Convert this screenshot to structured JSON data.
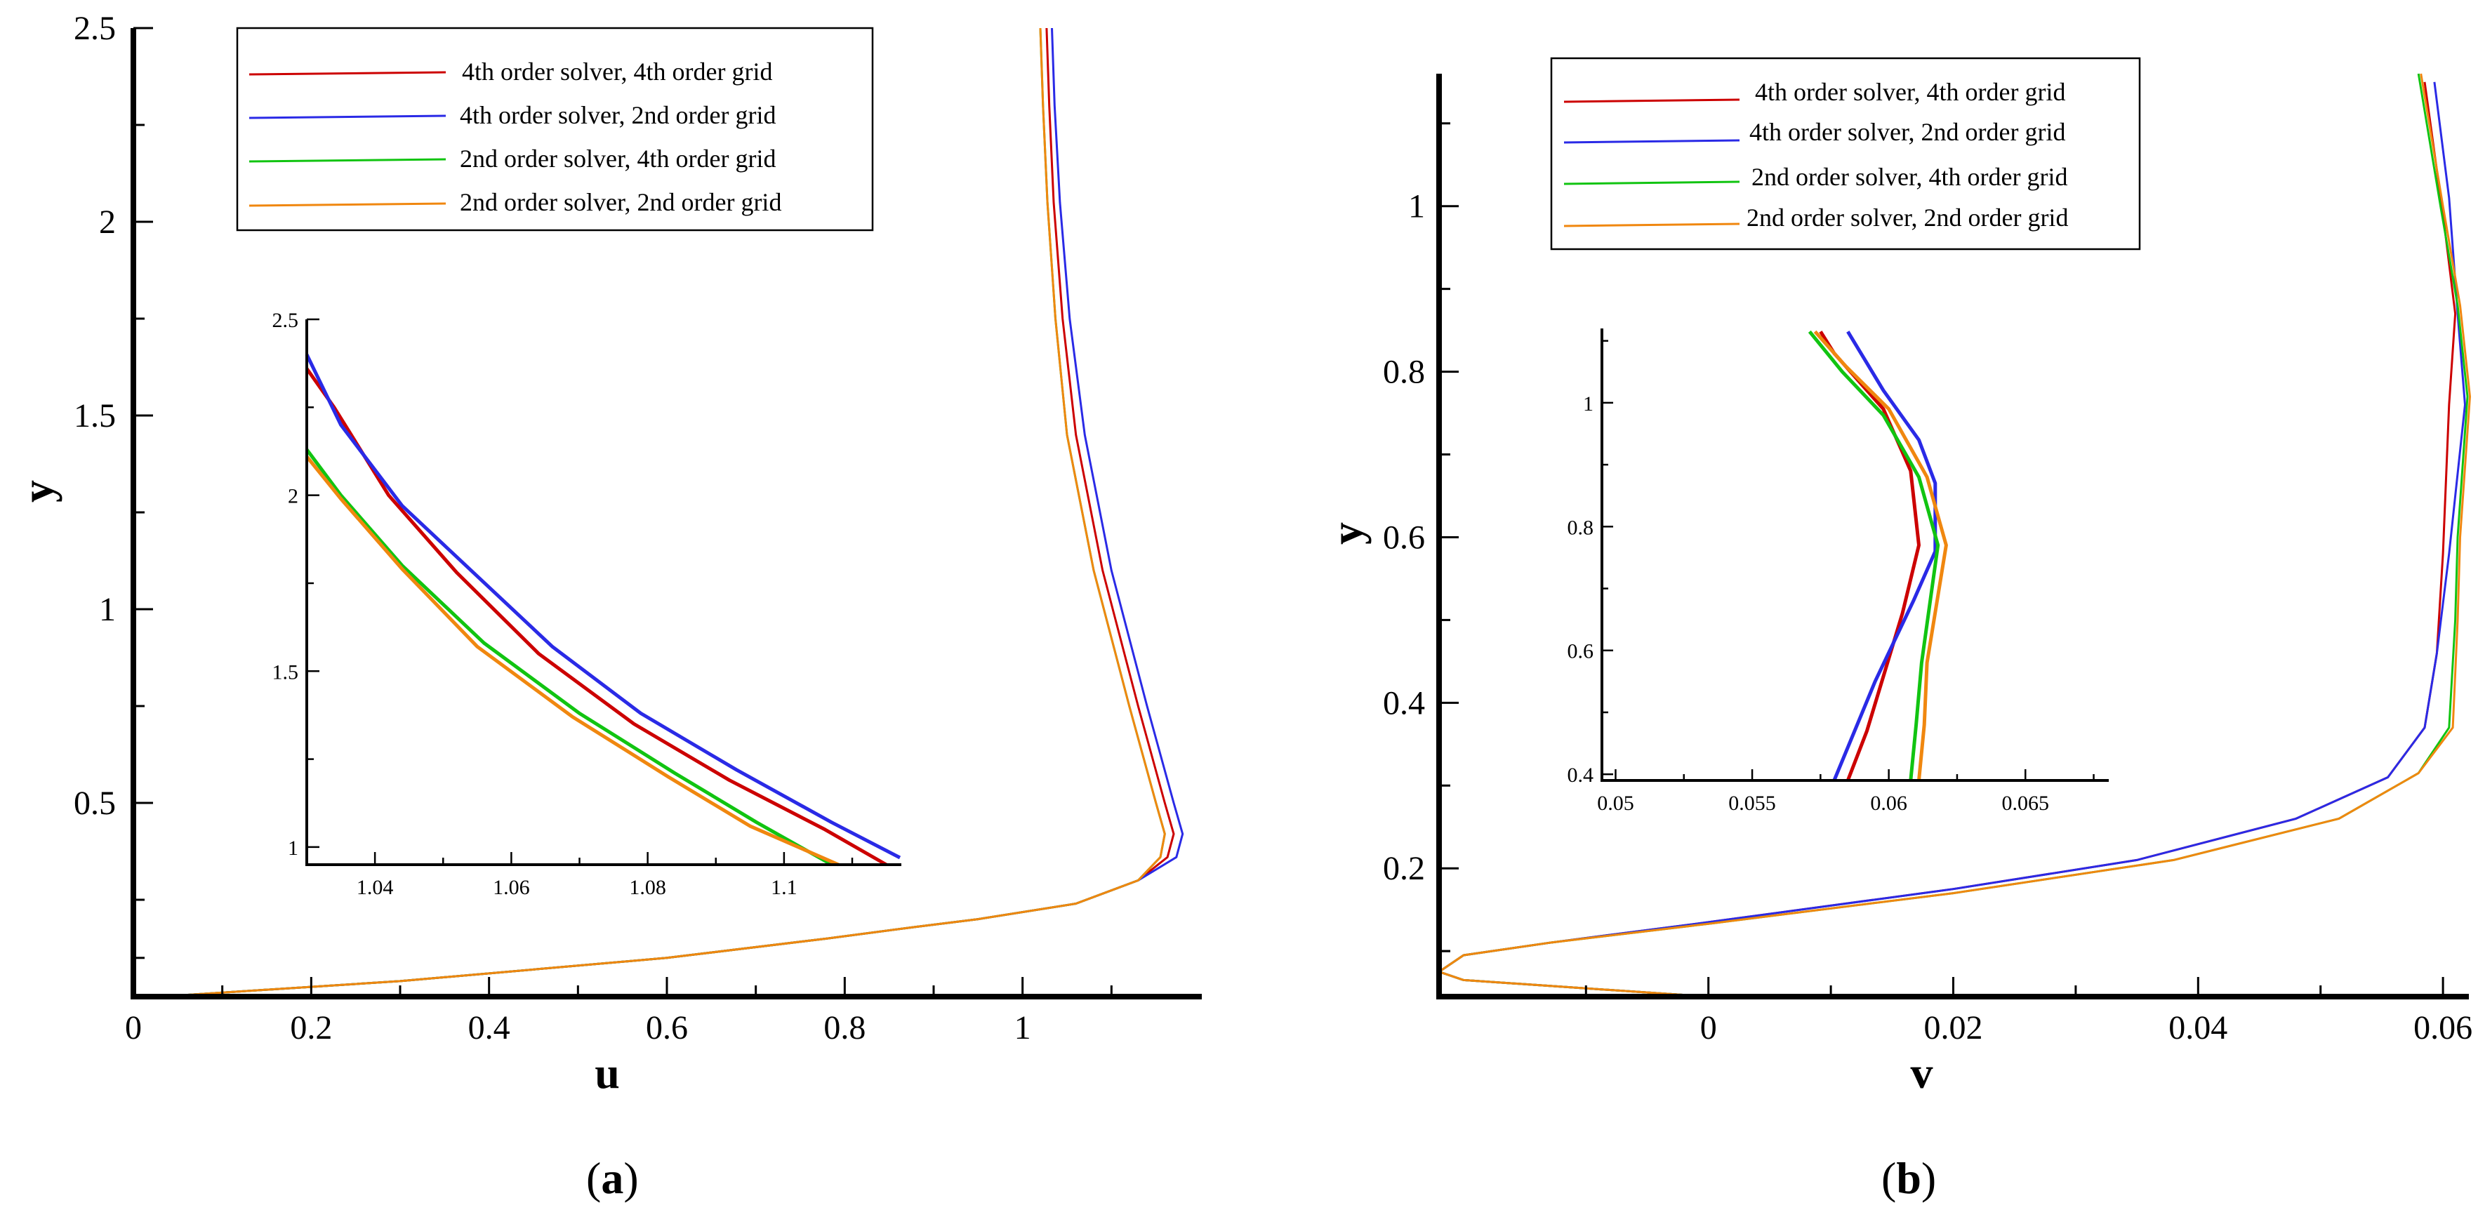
{
  "figure": {
    "captions": [
      {
        "open": "(",
        "letter": "a",
        "close": ")"
      },
      {
        "open": "(",
        "letter": "b",
        "close": ")"
      }
    ]
  },
  "series_styles": [
    {
      "name": "4th order solver, 4th order grid",
      "color": "#cc0000"
    },
    {
      "name": "4th order solver, 2nd order grid",
      "color": "#2a2ae6"
    },
    {
      "name": "2nd order solver, 4th order grid",
      "color": "#11c411"
    },
    {
      "name": "2nd order solver, 2nd order grid",
      "color": "#f0870f"
    }
  ],
  "chart_data": [
    {
      "id": "a",
      "type": "line",
      "title": "",
      "xlabel": "u",
      "ylabel": "y",
      "xlim": [
        0,
        1.2
      ],
      "ylim": [
        0,
        2.5
      ],
      "xticks": [
        0,
        0.2,
        0.4,
        0.6,
        0.8,
        1
      ],
      "xtick_labels": [
        "0",
        "0.2",
        "0.4",
        "0.6",
        "0.8",
        "1"
      ],
      "yticks": [
        0.5,
        1,
        1.5,
        2,
        2.5
      ],
      "ytick_labels": [
        "0.5",
        "1",
        "1.5",
        "2",
        "2.5"
      ],
      "legend_position": "top-center",
      "series": [
        {
          "name": "4th order solver, 4th order grid",
          "x": [
            0.03,
            0.3,
            0.6,
            0.78,
            0.88,
            0.95,
            1.06,
            1.13,
            1.163,
            1.17,
            1.16,
            1.13,
            1.09,
            1.06,
            1.045,
            1.035,
            1.03,
            1.027
          ],
          "y": [
            0.0,
            0.04,
            0.1,
            0.15,
            0.18,
            0.2,
            0.24,
            0.3,
            0.36,
            0.42,
            0.5,
            0.75,
            1.1,
            1.45,
            1.75,
            2.05,
            2.3,
            2.5
          ]
        },
        {
          "name": "4th order solver, 2nd order grid",
          "x": [
            0.03,
            0.3,
            0.6,
            0.78,
            0.88,
            0.95,
            1.06,
            1.13,
            1.173,
            1.18,
            1.17,
            1.14,
            1.1,
            1.07,
            1.053,
            1.042,
            1.036,
            1.033
          ],
          "y": [
            0.0,
            0.04,
            0.1,
            0.15,
            0.18,
            0.2,
            0.24,
            0.3,
            0.36,
            0.42,
            0.5,
            0.75,
            1.1,
            1.45,
            1.75,
            2.05,
            2.3,
            2.5
          ]
        },
        {
          "name": "2nd order solver, 4th order grid",
          "x": [
            0.03,
            0.3,
            0.6,
            0.78,
            0.88,
            0.95,
            1.06,
            1.13,
            1.155,
            1.16,
            1.15,
            1.12,
            1.08,
            1.05,
            1.037,
            1.028,
            1.023,
            1.02
          ],
          "y": [
            0.0,
            0.04,
            0.1,
            0.15,
            0.18,
            0.2,
            0.24,
            0.3,
            0.36,
            0.42,
            0.5,
            0.75,
            1.1,
            1.45,
            1.75,
            2.05,
            2.3,
            2.5
          ]
        },
        {
          "name": "2nd order solver, 2nd order grid",
          "x": [
            0.03,
            0.3,
            0.6,
            0.78,
            0.88,
            0.95,
            1.06,
            1.13,
            1.155,
            1.16,
            1.15,
            1.12,
            1.08,
            1.05,
            1.037,
            1.028,
            1.023,
            1.02
          ],
          "y": [
            0.0,
            0.04,
            0.1,
            0.15,
            0.18,
            0.2,
            0.24,
            0.3,
            0.36,
            0.42,
            0.5,
            0.75,
            1.1,
            1.45,
            1.75,
            2.05,
            2.3,
            2.5
          ]
        }
      ],
      "inset": {
        "xlim": [
          1.03,
          1.117
        ],
        "ylim": [
          0.95,
          2.5
        ],
        "xticks": [
          1.04,
          1.06,
          1.08,
          1.1
        ],
        "xtick_labels": [
          "1.04",
          "1.06",
          "1.08",
          "1.1"
        ],
        "yticks": [
          1,
          1.5,
          2,
          2.5
        ],
        "ytick_labels": [
          "1",
          "1.5",
          "2",
          "2.5"
        ],
        "series": [
          {
            "name": "4th order solver, 4th order grid",
            "x": [
              1.03,
              1.034,
              1.042,
              1.052,
              1.064,
              1.078,
              1.092,
              1.106,
              1.115
            ],
            "y": [
              2.36,
              2.25,
              2.0,
              1.78,
              1.55,
              1.35,
              1.19,
              1.05,
              0.95
            ]
          },
          {
            "name": "4th order solver, 2nd order grid",
            "x": [
              1.03,
              1.035,
              1.044,
              1.055,
              1.066,
              1.079,
              1.093,
              1.107,
              1.117
            ],
            "y": [
              2.4,
              2.2,
              1.97,
              1.77,
              1.57,
              1.38,
              1.22,
              1.07,
              0.97
            ]
          },
          {
            "name": "2nd order solver, 4th order grid",
            "x": [
              1.03,
              1.035,
              1.044,
              1.056,
              1.07,
              1.084,
              1.096,
              1.107
            ],
            "y": [
              2.13,
              2.0,
              1.8,
              1.58,
              1.38,
              1.21,
              1.07,
              0.95
            ]
          },
          {
            "name": "2nd order solver, 2nd order grid",
            "x": [
              1.03,
              1.035,
              1.044,
              1.055,
              1.069,
              1.083,
              1.095,
              1.108
            ],
            "y": [
              2.11,
              1.99,
              1.79,
              1.57,
              1.37,
              1.2,
              1.06,
              0.95
            ]
          }
        ]
      }
    },
    {
      "id": "b",
      "type": "line",
      "title": "",
      "xlabel": "v",
      "ylabel": "y",
      "xlim": [
        -0.022,
        0.062
      ],
      "ylim": [
        0.045,
        1.16
      ],
      "xticks": [
        0,
        0.02,
        0.04,
        0.06
      ],
      "xtick_labels": [
        "0",
        "0.02",
        "0.04",
        "0.06"
      ],
      "yticks": [
        0.2,
        0.4,
        0.6,
        0.8,
        1
      ],
      "ytick_labels": [
        "0.2",
        "0.4",
        "0.6",
        "0.8",
        "1"
      ],
      "legend_position": "top-center",
      "series": [
        {
          "name": "4th order solver, 4th order grid",
          "x": [
            0.0,
            -0.02,
            -0.022,
            -0.02,
            -0.013,
            0.0,
            0.02,
            0.035,
            0.048,
            0.0555,
            0.0585,
            0.0595,
            0.06,
            0.0605,
            0.061,
            0.06,
            0.0585
          ],
          "y": [
            0.045,
            0.065,
            0.075,
            0.095,
            0.11,
            0.135,
            0.175,
            0.21,
            0.26,
            0.31,
            0.37,
            0.46,
            0.58,
            0.76,
            0.87,
            0.99,
            1.15
          ]
        },
        {
          "name": "4th order solver, 2nd order grid",
          "x": [
            0.0,
            -0.02,
            -0.022,
            -0.02,
            -0.013,
            0.0,
            0.02,
            0.035,
            0.048,
            0.0555,
            0.0585,
            0.0595,
            0.0605,
            0.0618,
            0.0612,
            0.0605,
            0.0593
          ],
          "y": [
            0.045,
            0.065,
            0.075,
            0.095,
            0.11,
            0.135,
            0.175,
            0.21,
            0.26,
            0.31,
            0.37,
            0.46,
            0.58,
            0.76,
            0.87,
            1.01,
            1.15
          ]
        },
        {
          "name": "2nd order solver, 4th order grid",
          "x": [
            0.0,
            -0.02,
            -0.022,
            -0.02,
            -0.013,
            0.0,
            0.02,
            0.038,
            0.0515,
            0.058,
            0.0605,
            0.061,
            0.0612,
            0.062,
            0.0612,
            0.0598,
            0.058
          ],
          "y": [
            0.045,
            0.065,
            0.075,
            0.095,
            0.11,
            0.133,
            0.17,
            0.21,
            0.26,
            0.315,
            0.37,
            0.5,
            0.6,
            0.77,
            0.88,
            1.0,
            1.16
          ]
        },
        {
          "name": "2nd order solver, 2nd order grid",
          "x": [
            0.0,
            -0.02,
            -0.022,
            -0.02,
            -0.013,
            0.0,
            0.02,
            0.038,
            0.0515,
            0.058,
            0.0608,
            0.0612,
            0.0614,
            0.0622,
            0.0614,
            0.06,
            0.0582
          ],
          "y": [
            0.045,
            0.065,
            0.075,
            0.095,
            0.11,
            0.133,
            0.17,
            0.21,
            0.26,
            0.315,
            0.37,
            0.5,
            0.6,
            0.77,
            0.88,
            1.0,
            1.16
          ]
        }
      ],
      "inset": {
        "xlim": [
          0.0495,
          0.068
        ],
        "ylim": [
          0.39,
          1.12
        ],
        "xticks": [
          0.05,
          0.055,
          0.06,
          0.065
        ],
        "xtick_labels": [
          "0.05",
          "0.055",
          "0.06",
          "0.065"
        ],
        "yticks": [
          0.4,
          0.6,
          0.8,
          1
        ],
        "ytick_labels": [
          "0.4",
          "0.6",
          "0.8",
          "1"
        ],
        "series": [
          {
            "name": "4th order solver, 4th order grid",
            "x": [
              0.0585,
              0.0592,
              0.0605,
              0.0611,
              0.0608,
              0.0598,
              0.058,
              0.0575
            ],
            "y": [
              0.39,
              0.47,
              0.66,
              0.77,
              0.89,
              0.99,
              1.08,
              1.115
            ]
          },
          {
            "name": "4th order solver, 2nd order grid",
            "x": [
              0.058,
              0.0595,
              0.0609,
              0.0617,
              0.0617,
              0.0611,
              0.0598,
              0.0585
            ],
            "y": [
              0.39,
              0.55,
              0.68,
              0.76,
              0.87,
              0.94,
              1.02,
              1.115
            ]
          },
          {
            "name": "2nd order solver, 4th order grid",
            "x": [
              0.0608,
              0.061,
              0.0612,
              0.0618,
              0.0611,
              0.0598,
              0.0583,
              0.0571
            ],
            "y": [
              0.39,
              0.48,
              0.58,
              0.77,
              0.88,
              0.98,
              1.05,
              1.115
            ]
          },
          {
            "name": "2nd order solver, 2nd order grid",
            "x": [
              0.0611,
              0.0613,
              0.0614,
              0.0621,
              0.0614,
              0.06,
              0.0584,
              0.0573
            ],
            "y": [
              0.39,
              0.48,
              0.58,
              0.77,
              0.88,
              0.99,
              1.06,
              1.115
            ]
          }
        ]
      }
    }
  ]
}
